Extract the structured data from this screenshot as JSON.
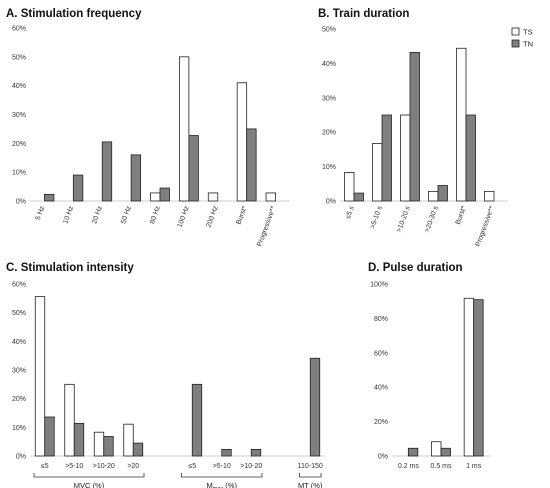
{
  "legend": {
    "ts": "TS",
    "tn": "TN"
  },
  "colors": {
    "ts": "#ffffff",
    "tn": "#7f7f7f"
  },
  "chart_data": [
    {
      "id": "A",
      "type": "bar",
      "title": "A. Stimulation frequency",
      "categories": [
        "5 Hz",
        "10 Hz",
        "20 Hz",
        "50 Hz",
        "80 Hz",
        "100 Hz",
        "200 Hz",
        "Burst*",
        "Progressive**"
      ],
      "series": [
        {
          "name": "TS",
          "values": [
            0,
            0,
            0,
            0,
            2.8,
            50,
            2.8,
            41,
            2.8
          ]
        },
        {
          "name": "TN",
          "values": [
            2.3,
            9,
            20.5,
            16,
            4.5,
            22.7,
            0,
            25,
            0
          ]
        }
      ],
      "ylim": [
        0,
        60
      ],
      "yticks": [
        "0%",
        "10%",
        "20%",
        "30%",
        "40%",
        "50%",
        "60%"
      ],
      "rotated_labels": true
    },
    {
      "id": "B",
      "type": "bar",
      "title": "B. Train duration",
      "categories": [
        "≤5 s",
        ">5-10 s",
        ">10-20 s",
        ">20-30 s",
        "Burst*",
        "Progressive**"
      ],
      "series": [
        {
          "name": "TS",
          "values": [
            8.3,
            16.7,
            25,
            2.8,
            44.4,
            2.8
          ]
        },
        {
          "name": "TN",
          "values": [
            2.3,
            25,
            43.2,
            4.5,
            25,
            0
          ]
        }
      ],
      "ylim": [
        0,
        50
      ],
      "yticks": [
        "0%",
        "10%",
        "20%",
        "30%",
        "40%",
        "50%"
      ],
      "rotated_labels": true
    },
    {
      "id": "C",
      "type": "bar",
      "title": "C. Stimulation intensity",
      "categories": [
        "≤5",
        ">5-10",
        ">10-20",
        ">20",
        "",
        "≤5",
        ">5-10",
        ">10-20",
        "",
        "110-150"
      ],
      "series": [
        {
          "name": "TS",
          "values": [
            55.6,
            25,
            8.3,
            11.1,
            null,
            0,
            0,
            0,
            null,
            0
          ]
        },
        {
          "name": "TN",
          "values": [
            13.6,
            11.4,
            6.8,
            4.5,
            null,
            25,
            2.3,
            2.3,
            null,
            34.1
          ]
        }
      ],
      "ylim": [
        0,
        60
      ],
      "yticks": [
        "0%",
        "10%",
        "20%",
        "30%",
        "40%",
        "50%",
        "60%"
      ],
      "rotated_labels": false,
      "groups": [
        {
          "label": "MVC (%)",
          "from": 0,
          "to": 3
        },
        {
          "label": "M",
          "sub": "max",
          "suffix": " (%)",
          "from": 5,
          "to": 7
        },
        {
          "label": "MT (%)",
          "from": 9,
          "to": 9
        }
      ]
    },
    {
      "id": "D",
      "type": "bar",
      "title": "D. Pulse duration",
      "categories": [
        "0.2 ms",
        "0.5 ms",
        "1 ms"
      ],
      "series": [
        {
          "name": "TS",
          "values": [
            0,
            8.3,
            91.7
          ]
        },
        {
          "name": "TN",
          "values": [
            4.5,
            4.5,
            90.9
          ]
        }
      ],
      "ylim": [
        0,
        100
      ],
      "yticks": [
        "0%",
        "20%",
        "40%",
        "60%",
        "80%",
        "100%"
      ],
      "rotated_labels": false
    }
  ]
}
